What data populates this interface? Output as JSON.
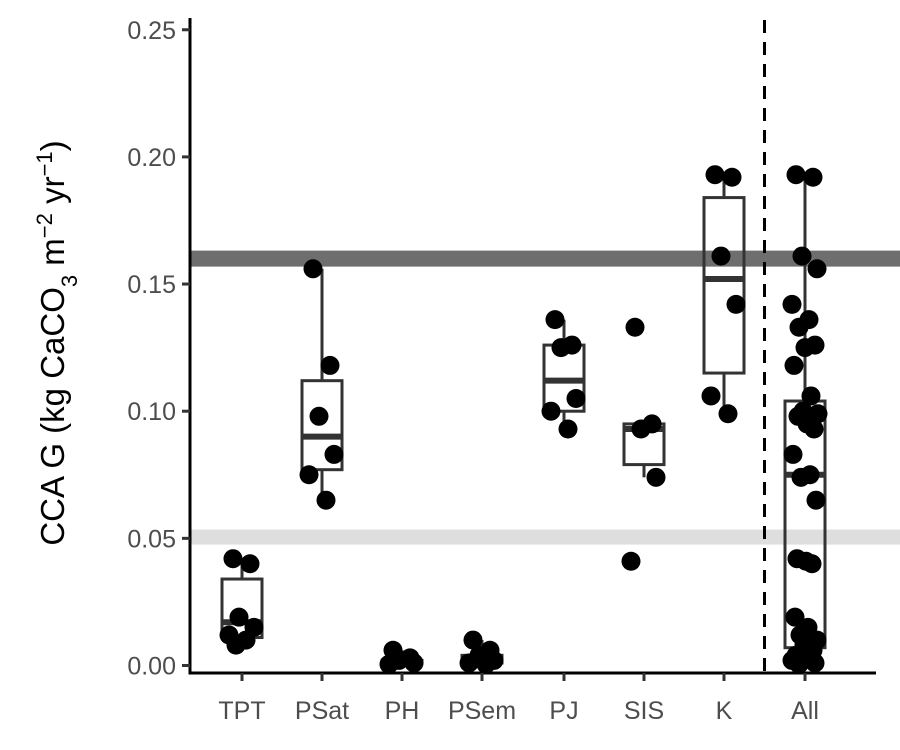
{
  "chart_data": {
    "type": "box",
    "ylabel_parts": [
      "CCA G (kg CaCO",
      "3",
      " m",
      "−2",
      " yr",
      "−1",
      ")"
    ],
    "xlabel": "",
    "ylim": [
      0,
      0.25
    ],
    "yticks": [
      "0.00",
      "0.05",
      "0.10",
      "0.15",
      "0.20",
      "0.25"
    ],
    "ytick_values": [
      0,
      0.05,
      0.1,
      0.15,
      0.2,
      0.25
    ],
    "categories": [
      "TPT",
      "PSat",
      "PH",
      "PSem",
      "PJ",
      "SIS",
      "K",
      "All"
    ],
    "reference_bands": [
      {
        "value": 0.16,
        "color": "#6e6e6e"
      },
      {
        "value": 0.0505,
        "color": "#dedede"
      }
    ],
    "separator_after": "K",
    "boxes": [
      {
        "category": "TPT",
        "q1": 0.011,
        "median": 0.017,
        "q3": 0.034,
        "whisker_low": 0.008,
        "whisker_high": 0.042
      },
      {
        "category": "PSat",
        "q1": 0.077,
        "median": 0.09,
        "q3": 0.112,
        "whisker_low": 0.065,
        "whisker_high": 0.156
      },
      {
        "category": "PH",
        "q1": 0.001,
        "median": 0.0015,
        "q3": 0.002,
        "whisker_low": 0.0005,
        "whisker_high": 0.006
      },
      {
        "category": "PSem",
        "q1": 0.001,
        "median": 0.003,
        "q3": 0.004,
        "whisker_low": 0.0005,
        "whisker_high": 0.01
      },
      {
        "category": "PJ",
        "q1": 0.1,
        "median": 0.112,
        "q3": 0.126,
        "whisker_low": 0.093,
        "whisker_high": 0.136
      },
      {
        "category": "SIS",
        "q1": 0.079,
        "median": 0.093,
        "q3": 0.095,
        "whisker_low": 0.074,
        "whisker_high": 0.095
      },
      {
        "category": "K",
        "q1": 0.115,
        "median": 0.152,
        "q3": 0.184,
        "whisker_low": 0.099,
        "whisker_high": 0.193
      },
      {
        "category": "All",
        "q1": 0.007,
        "median": 0.075,
        "q3": 0.104,
        "whisker_low": 0.0005,
        "whisker_high": 0.193
      }
    ],
    "points": [
      {
        "category": "TPT",
        "values": [
          0.042,
          0.04,
          0.019,
          0.015,
          0.012,
          0.01,
          0.008
        ]
      },
      {
        "category": "PSat",
        "values": [
          0.156,
          0.118,
          0.098,
          0.083,
          0.075,
          0.065
        ]
      },
      {
        "category": "PH",
        "values": [
          0.006,
          0.003,
          0.002,
          0.001,
          0.0005
        ]
      },
      {
        "category": "PSem",
        "values": [
          0.01,
          0.006,
          0.004,
          0.002,
          0.001,
          0.0005
        ]
      },
      {
        "category": "PJ",
        "values": [
          0.136,
          0.126,
          0.125,
          0.105,
          0.1,
          0.093
        ]
      },
      {
        "category": "SIS",
        "values": [
          0.133,
          0.095,
          0.093,
          0.074,
          0.041
        ]
      },
      {
        "category": "K",
        "values": [
          0.193,
          0.192,
          0.161,
          0.142,
          0.106,
          0.099
        ]
      },
      {
        "category": "All",
        "values": [
          0.193,
          0.192,
          0.161,
          0.156,
          0.142,
          0.136,
          0.133,
          0.126,
          0.125,
          0.118,
          0.106,
          0.1,
          0.099,
          0.098,
          0.095,
          0.093,
          0.083,
          0.075,
          0.074,
          0.065,
          0.042,
          0.041,
          0.04,
          0.019,
          0.015,
          0.012,
          0.01,
          0.008,
          0.006,
          0.004,
          0.003,
          0.002,
          0.001,
          0.0005
        ]
      }
    ]
  }
}
